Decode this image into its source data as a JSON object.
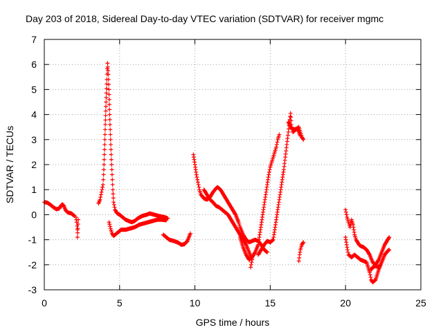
{
  "chart_data": {
    "type": "scatter",
    "title": "Day 203 of 2018, Sidereal Day-to-day VTEC variation (SDTVAR) for receiver mgmc",
    "xlabel": "GPS time / hours",
    "ylabel": "SDTVAR / TECUs",
    "xlim": [
      0,
      25
    ],
    "ylim": [
      -3,
      7
    ],
    "x_ticks": [
      0,
      5,
      10,
      15,
      20,
      25
    ],
    "y_ticks": [
      -3,
      -2,
      -1,
      0,
      1,
      2,
      3,
      4,
      5,
      6,
      7
    ],
    "grid": true,
    "marker": "+",
    "colors": {
      "series": "#ff0000",
      "axes": "#000000",
      "grid": "#a0a0a0"
    },
    "series": [
      {
        "name": "SDTVAR",
        "segments": [
          [
            [
              0.0,
              0.5
            ],
            [
              0.2,
              0.48
            ],
            [
              0.4,
              0.4
            ],
            [
              0.6,
              0.3
            ],
            [
              0.8,
              0.22
            ],
            [
              1.0,
              0.25
            ],
            [
              1.1,
              0.35
            ],
            [
              1.2,
              0.42
            ],
            [
              1.3,
              0.35
            ],
            [
              1.4,
              0.2
            ],
            [
              1.5,
              0.12
            ],
            [
              1.6,
              0.08
            ],
            [
              1.8,
              0.05
            ],
            [
              1.9,
              0.0
            ],
            [
              2.0,
              -0.05
            ]
          ],
          [
            [
              2.1,
              -0.1
            ],
            [
              2.15,
              -0.3
            ],
            [
              2.2,
              -0.6
            ],
            [
              2.2,
              -0.9
            ],
            [
              2.25,
              -0.2
            ]
          ],
          [
            [
              3.6,
              0.45
            ],
            [
              3.7,
              0.6
            ],
            [
              3.8,
              0.9
            ],
            [
              3.9,
              1.2
            ],
            [
              3.95,
              1.8
            ],
            [
              4.0,
              2.6
            ],
            [
              4.05,
              3.6
            ],
            [
              4.1,
              4.5
            ],
            [
              4.15,
              5.4
            ],
            [
              4.2,
              6.05
            ],
            [
              4.25,
              5.6
            ],
            [
              4.3,
              4.8
            ],
            [
              4.35,
              3.8
            ],
            [
              4.4,
              3.0
            ],
            [
              4.45,
              2.2
            ],
            [
              4.5,
              1.6
            ],
            [
              4.55,
              1.0
            ],
            [
              4.6,
              0.5
            ],
            [
              4.7,
              0.2
            ],
            [
              4.8,
              0.08
            ],
            [
              4.9,
              0.03
            ],
            [
              5.0,
              0.0
            ],
            [
              5.2,
              -0.1
            ],
            [
              5.4,
              -0.2
            ],
            [
              5.6,
              -0.25
            ],
            [
              5.8,
              -0.3
            ],
            [
              6.0,
              -0.25
            ],
            [
              6.2,
              -0.15
            ],
            [
              6.5,
              -0.05
            ],
            [
              6.8,
              0.0
            ],
            [
              7.0,
              0.05
            ],
            [
              7.3,
              0.0
            ],
            [
              7.6,
              -0.05
            ],
            [
              8.0,
              -0.1
            ],
            [
              8.2,
              -0.15
            ]
          ],
          [
            [
              4.3,
              -0.3
            ],
            [
              4.4,
              -0.55
            ],
            [
              4.5,
              -0.75
            ],
            [
              4.6,
              -0.85
            ],
            [
              4.7,
              -0.8
            ],
            [
              4.9,
              -0.7
            ],
            [
              5.1,
              -0.6
            ],
            [
              5.4,
              -0.6
            ],
            [
              5.7,
              -0.55
            ],
            [
              6.0,
              -0.5
            ],
            [
              6.3,
              -0.4
            ],
            [
              6.6,
              -0.35
            ],
            [
              6.9,
              -0.3
            ],
            [
              7.2,
              -0.25
            ],
            [
              7.5,
              -0.2
            ],
            [
              7.8,
              -0.2
            ],
            [
              8.1,
              -0.22
            ]
          ],
          [
            [
              7.9,
              -0.8
            ],
            [
              8.1,
              -0.9
            ],
            [
              8.3,
              -1.0
            ],
            [
              8.6,
              -1.05
            ],
            [
              8.9,
              -1.12
            ],
            [
              9.1,
              -1.2
            ],
            [
              9.3,
              -1.18
            ],
            [
              9.5,
              -1.05
            ],
            [
              9.6,
              -0.9
            ],
            [
              9.7,
              -0.75
            ]
          ],
          [
            [
              9.9,
              2.4
            ],
            [
              9.95,
              2.2
            ],
            [
              10.0,
              2.0
            ],
            [
              10.1,
              1.6
            ],
            [
              10.2,
              1.3
            ],
            [
              10.3,
              1.0
            ],
            [
              10.4,
              0.8
            ],
            [
              10.6,
              0.65
            ],
            [
              10.8,
              0.6
            ],
            [
              11.0,
              0.7
            ],
            [
              11.2,
              0.9
            ],
            [
              11.4,
              1.05
            ],
            [
              11.5,
              1.1
            ],
            [
              11.7,
              1.0
            ],
            [
              11.9,
              0.8
            ],
            [
              12.1,
              0.6
            ],
            [
              12.3,
              0.4
            ],
            [
              12.5,
              0.2
            ],
            [
              12.7,
              0.0
            ],
            [
              12.9,
              -0.3
            ],
            [
              13.0,
              -0.5
            ],
            [
              13.2,
              -0.8
            ],
            [
              13.4,
              -1.0
            ],
            [
              13.6,
              -1.1
            ],
            [
              13.8,
              -1.05
            ],
            [
              14.0,
              -1.0
            ],
            [
              14.2,
              -1.05
            ],
            [
              14.4,
              -1.2
            ],
            [
              14.6,
              -1.4
            ],
            [
              14.8,
              -1.5
            ]
          ],
          [
            [
              10.6,
              1.0
            ],
            [
              10.8,
              0.8
            ],
            [
              11.0,
              0.6
            ],
            [
              11.2,
              0.5
            ],
            [
              11.4,
              0.35
            ],
            [
              11.6,
              0.3
            ],
            [
              11.8,
              0.2
            ],
            [
              12.0,
              0.1
            ],
            [
              12.2,
              0.0
            ],
            [
              12.4,
              -0.2
            ],
            [
              12.6,
              -0.4
            ],
            [
              12.8,
              -0.6
            ],
            [
              13.0,
              -0.8
            ],
            [
              13.2,
              -1.0
            ],
            [
              13.4,
              -1.2
            ],
            [
              13.6,
              -1.5
            ],
            [
              13.8,
              -1.8
            ],
            [
              13.7,
              -2.1
            ]
          ],
          [
            [
              13.0,
              -0.9
            ],
            [
              13.2,
              -1.3
            ],
            [
              13.4,
              -1.6
            ],
            [
              13.6,
              -1.8
            ],
            [
              13.8,
              -1.7
            ],
            [
              14.0,
              -1.5
            ],
            [
              14.2,
              -1.2
            ],
            [
              14.3,
              -0.8
            ],
            [
              14.4,
              -0.4
            ],
            [
              14.5,
              0.0
            ],
            [
              14.6,
              0.4
            ],
            [
              14.7,
              0.8
            ],
            [
              14.8,
              1.2
            ],
            [
              14.9,
              1.6
            ],
            [
              15.0,
              1.9
            ],
            [
              15.1,
              2.1
            ],
            [
              15.2,
              2.3
            ],
            [
              15.3,
              2.5
            ],
            [
              15.4,
              2.7
            ],
            [
              15.5,
              3.0
            ],
            [
              15.6,
              3.2
            ]
          ],
          [
            [
              14.2,
              -1.6
            ],
            [
              14.4,
              -1.4
            ],
            [
              14.6,
              -1.2
            ],
            [
              14.8,
              -1.05
            ],
            [
              15.0,
              -1.1
            ],
            [
              15.2,
              -1.0
            ],
            [
              15.3,
              -0.6
            ],
            [
              15.4,
              -0.2
            ],
            [
              15.5,
              0.2
            ],
            [
              15.6,
              0.6
            ],
            [
              15.7,
              1.0
            ],
            [
              15.8,
              1.4
            ],
            [
              15.9,
              1.8
            ],
            [
              16.0,
              2.3
            ],
            [
              16.1,
              2.8
            ],
            [
              16.2,
              3.3
            ],
            [
              16.3,
              3.8
            ],
            [
              16.35,
              4.05
            ],
            [
              16.4,
              3.6
            ],
            [
              16.5,
              3.3
            ],
            [
              16.7,
              3.4
            ],
            [
              16.9,
              3.5
            ],
            [
              17.0,
              3.3
            ],
            [
              17.1,
              3.1
            ],
            [
              17.2,
              3.0
            ]
          ],
          [
            [
              16.2,
              3.7
            ],
            [
              16.4,
              3.45
            ],
            [
              16.6,
              3.4
            ],
            [
              16.8,
              3.45
            ],
            [
              16.9,
              3.3
            ],
            [
              17.0,
              3.15
            ]
          ],
          [
            [
              16.9,
              -1.85
            ],
            [
              16.95,
              -1.6
            ],
            [
              17.0,
              -1.4
            ],
            [
              17.1,
              -1.2
            ],
            [
              17.2,
              -1.1
            ]
          ],
          [
            [
              20.0,
              0.2
            ],
            [
              20.1,
              -0.1
            ],
            [
              20.2,
              -0.3
            ],
            [
              20.3,
              -0.5
            ],
            [
              20.4,
              -0.2
            ],
            [
              20.5,
              -0.4
            ],
            [
              20.6,
              -0.8
            ],
            [
              20.7,
              -1.0
            ],
            [
              20.8,
              -1.1
            ],
            [
              20.9,
              -1.2
            ],
            [
              21.0,
              -1.25
            ],
            [
              21.2,
              -1.3
            ],
            [
              21.4,
              -1.4
            ],
            [
              21.6,
              -1.6
            ],
            [
              21.8,
              -1.9
            ],
            [
              22.0,
              -2.0
            ],
            [
              22.2,
              -1.8
            ],
            [
              22.4,
              -1.5
            ],
            [
              22.6,
              -1.2
            ],
            [
              22.8,
              -1.0
            ],
            [
              22.9,
              -0.9
            ]
          ],
          [
            [
              20.0,
              -0.9
            ],
            [
              20.1,
              -1.3
            ],
            [
              20.2,
              -1.6
            ],
            [
              20.4,
              -1.7
            ],
            [
              20.6,
              -1.6
            ],
            [
              20.8,
              -1.7
            ],
            [
              21.0,
              -1.8
            ],
            [
              21.2,
              -1.85
            ],
            [
              21.4,
              -1.9
            ],
            [
              21.6,
              -2.3
            ],
            [
              21.7,
              -2.6
            ],
            [
              21.8,
              -2.7
            ],
            [
              22.0,
              -2.6
            ],
            [
              22.2,
              -2.2
            ],
            [
              22.4,
              -1.9
            ],
            [
              22.6,
              -1.6
            ],
            [
              22.8,
              -1.45
            ],
            [
              22.9,
              -1.4
            ]
          ],
          [
            [
              21.7,
              -2.2
            ],
            [
              21.8,
              -2.1
            ],
            [
              22.0,
              -2.05
            ],
            [
              22.2,
              -2.1
            ],
            [
              22.3,
              -2.0
            ]
          ]
        ]
      }
    ]
  }
}
